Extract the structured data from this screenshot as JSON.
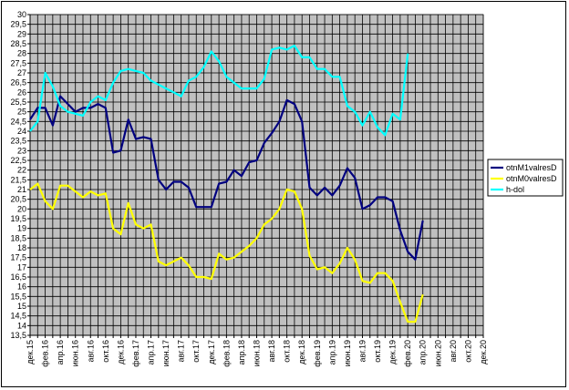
{
  "chart_data": {
    "type": "line",
    "title": "",
    "xlabel": "",
    "ylabel": "",
    "ylim": [
      13.5,
      30
    ],
    "y_step": 0.5,
    "grid": true,
    "legend_position": "right",
    "x_tick_labels": [
      "дек.15",
      "фев.16",
      "апр.16",
      "июн.16",
      "авг.16",
      "окт.16",
      "дек.16",
      "фев.17",
      "апр.17",
      "июн.17",
      "авг.17",
      "окт.17",
      "дек.17",
      "фев.18",
      "апр.18",
      "июн.18",
      "авг.18",
      "окт.18",
      "дек.18",
      "фев.19",
      "апр.19",
      "июн.19",
      "авг.19",
      "окт.19",
      "дек.19",
      "фев.20",
      "апр.20",
      "июн.20",
      "авг.20",
      "окт.20",
      "дек.20"
    ],
    "y_tick_labels": [
      "13,5",
      "14",
      "14,5",
      "15",
      "15,5",
      "16",
      "16,5",
      "17",
      "17,5",
      "18",
      "18,5",
      "19",
      "19,5",
      "20",
      "20,5",
      "21",
      "21,5",
      "22",
      "22,5",
      "23",
      "23,5",
      "24",
      "24,5",
      "25",
      "25,5",
      "26",
      "26,5",
      "27",
      "27,5",
      "28",
      "28,5",
      "29",
      "29,5",
      "30"
    ],
    "series": [
      {
        "name": "otnM1valresD",
        "color": "#000080",
        "values": [
          24.6,
          25.2,
          25.2,
          24.3,
          25.8,
          25.4,
          25.0,
          25.2,
          25.2,
          25.4,
          25.2,
          22.9,
          23.0,
          24.6,
          23.6,
          23.7,
          23.6,
          21.5,
          21.0,
          21.4,
          21.4,
          21.1,
          20.1,
          20.1,
          20.1,
          21.3,
          21.4,
          22.0,
          21.7,
          22.4,
          22.5,
          23.4,
          23.9,
          24.5,
          25.6,
          25.4,
          24.5,
          21.1,
          20.7,
          21.1,
          20.7,
          21.2,
          22.1,
          21.6,
          20.0,
          20.2,
          20.6,
          20.6,
          20.4,
          18.9,
          17.8,
          17.4,
          19.4
        ]
      },
      {
        "name": "otnM0valresD",
        "color": "#ffff00",
        "values": [
          21.0,
          21.3,
          20.4,
          20.0,
          21.2,
          21.2,
          20.9,
          20.6,
          20.9,
          20.7,
          20.8,
          19.0,
          18.7,
          20.3,
          19.2,
          19.0,
          19.2,
          17.3,
          17.1,
          17.3,
          17.5,
          17.1,
          16.5,
          16.5,
          16.4,
          17.7,
          17.4,
          17.5,
          17.8,
          18.1,
          18.5,
          19.2,
          19.5,
          20.0,
          21.0,
          20.9,
          20.0,
          17.6,
          16.9,
          17.0,
          16.7,
          17.2,
          18.0,
          17.4,
          16.3,
          16.2,
          16.7,
          16.7,
          16.3,
          15.2,
          14.2,
          14.2,
          15.6
        ]
      },
      {
        "name": "h-dol",
        "color": "#00ffff",
        "values": [
          24.0,
          24.5,
          27.0,
          26.3,
          25.3,
          25.0,
          24.9,
          24.8,
          25.5,
          25.8,
          25.6,
          26.5,
          27.1,
          27.2,
          27.1,
          27.0,
          26.6,
          26.4,
          26.2,
          26.0,
          25.8,
          26.6,
          26.8,
          27.3,
          28.1,
          27.6,
          26.8,
          26.5,
          26.2,
          26.2,
          26.2,
          26.7,
          28.2,
          28.3,
          28.2,
          28.4,
          27.8,
          27.8,
          27.2,
          27.2,
          26.8,
          26.8,
          25.3,
          25.0,
          24.3,
          25.0,
          24.2,
          23.8,
          24.9,
          24.6,
          28.0
        ]
      }
    ]
  }
}
